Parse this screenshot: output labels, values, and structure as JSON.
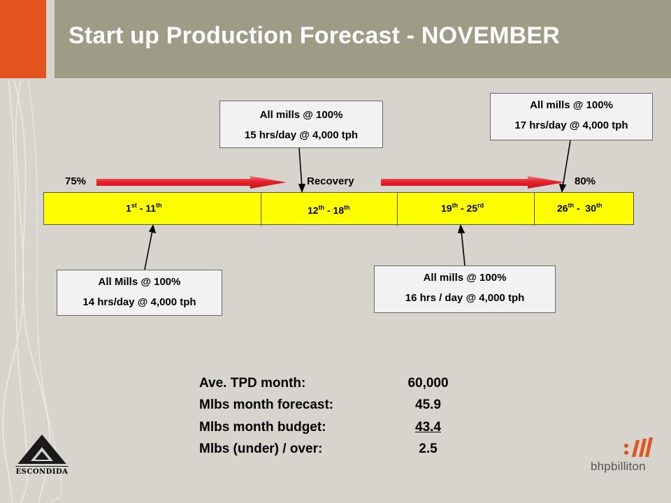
{
  "title": "Start up Production Forecast - NOVEMBER",
  "callouts": {
    "top_mid": {
      "line1": "All mills @ 100%",
      "line2": "15 hrs/day  @ 4,000 tph"
    },
    "top_right": {
      "line1": "All mills @ 100%",
      "line2": "17 hrs/day  @ 4,000 tph"
    },
    "bottom_left": {
      "line1": "All Mills @ 100%",
      "line2": "14 hrs/day @ 4,000 tph"
    },
    "bottom_right": {
      "line1": "All mills @ 100%",
      "line2": "16 hrs / day @ 4,000 tph"
    }
  },
  "timeline": {
    "left_label": "75%",
    "mid_label": "Recovery",
    "right_label": "80%",
    "segments": [
      {
        "start": "1",
        "start_sup": "st",
        "sep": " - ",
        "end": "11",
        "end_sup": "th"
      },
      {
        "start": "12",
        "start_sup": "th",
        "sep": " - ",
        "end": "18",
        "end_sup": "th"
      },
      {
        "start": "19",
        "start_sup": "th",
        "sep": " - ",
        "end": "25",
        "end_sup": "rd"
      },
      {
        "start": "26",
        "start_sup": "th",
        "sep": " -  ",
        "end": "30",
        "end_sup": "th"
      }
    ]
  },
  "summary": [
    {
      "label": "Ave. TPD month:",
      "value": "60,000"
    },
    {
      "label": "Mlbs month forecast:",
      "value": "45.9"
    },
    {
      "label": "Mlbs month budget:",
      "value": "43.4"
    },
    {
      "label": "Mlbs (under) / over:",
      "value": "2.5"
    }
  ],
  "logos": {
    "left": "ESCONDIDA",
    "right": "bhpbilliton"
  },
  "colors": {
    "accent_orange": "#e2531e",
    "title_bar": "#9e9b86",
    "timeline_fill": "#ffff00",
    "arrow_red": "#e8202a"
  }
}
